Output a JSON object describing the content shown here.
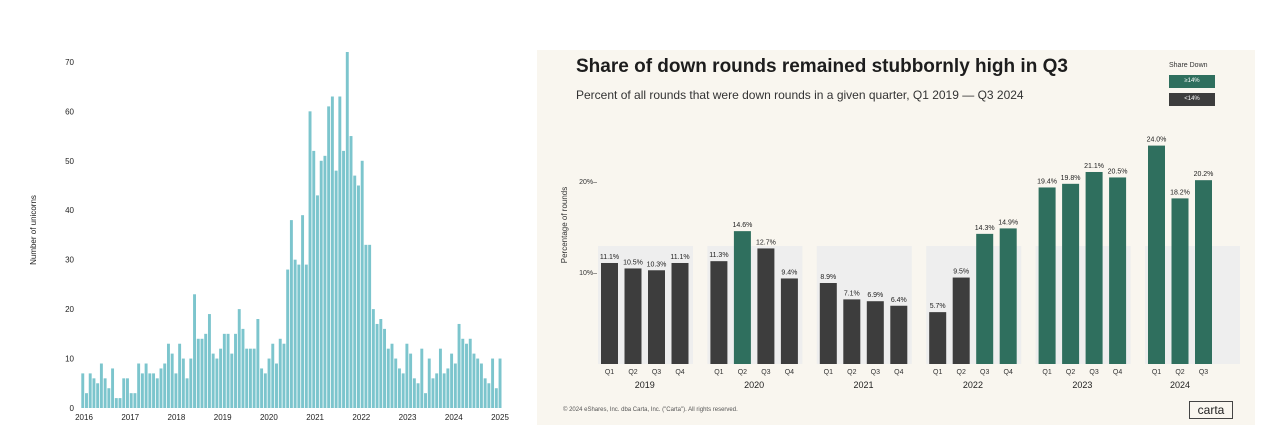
{
  "chart_data": [
    {
      "type": "bar",
      "title": "",
      "xlabel": "",
      "ylabel": "Number of unicorns",
      "ylim": [
        0,
        72
      ],
      "yticks": [
        0,
        10,
        20,
        30,
        40,
        50,
        60,
        70
      ],
      "xtick_labels": [
        "2016",
        "2017",
        "2018",
        "2019",
        "2020",
        "2021",
        "2022",
        "2023",
        "2024",
        "2025"
      ],
      "bar_color": "#7cc5cd",
      "values": [
        7,
        3,
        7,
        6,
        5,
        9,
        6,
        4,
        8,
        2,
        2,
        6,
        6,
        3,
        3,
        9,
        7,
        9,
        7,
        7,
        6,
        8,
        9,
        13,
        11,
        7,
        13,
        10,
        6,
        10,
        23,
        14,
        14,
        15,
        19,
        11,
        10,
        12,
        15,
        15,
        11,
        15,
        20,
        16,
        12,
        12,
        12,
        18,
        8,
        7,
        10,
        13,
        9,
        14,
        13,
        28,
        38,
        30,
        29,
        39,
        29,
        60,
        52,
        43,
        50,
        51,
        61,
        63,
        48,
        63,
        52,
        72,
        55,
        47,
        45,
        50,
        33,
        33,
        20,
        17,
        18,
        16,
        12,
        13,
        10,
        8,
        7,
        13,
        11,
        6,
        5,
        12,
        3,
        10,
        6,
        7,
        12,
        7,
        8,
        11,
        9,
        17,
        14,
        13,
        14,
        11,
        10,
        9,
        6,
        5,
        10,
        4,
        10
      ],
      "grid": false,
      "legend": "none"
    },
    {
      "type": "bar",
      "title": "Share of down rounds remained stubbornly high in Q3",
      "subtitle": "Percent of all rounds that were down rounds in a given quarter, Q1 2019 — Q3 2024",
      "ylabel": "Percentage of rounds",
      "ylim": [
        0,
        24.5
      ],
      "yticks": [
        {
          "value": 10,
          "label": "10%–"
        },
        {
          "value": 20,
          "label": "20%–"
        }
      ],
      "legend": {
        "title": "Share Down",
        "position": "top-right",
        "items": [
          {
            "label": "≥14%",
            "color": "#2f6f5e"
          },
          {
            "label": "<14%",
            "color": "#3d3d3d"
          }
        ]
      },
      "colors": {
        "high": "#2f6f5e",
        "low": "#3d3d3d",
        "group_bg": "#eeeeee"
      },
      "threshold": 14,
      "years": [
        {
          "year": "2019",
          "quarters": [
            "Q1",
            "Q2",
            "Q3",
            "Q4"
          ],
          "values": [
            11.1,
            10.5,
            10.3,
            11.1
          ],
          "labels": [
            "11.1%",
            "10.5%",
            "10.3%",
            "11.1%"
          ]
        },
        {
          "year": "2020",
          "quarters": [
            "Q1",
            "Q2",
            "Q3",
            "Q4"
          ],
          "values": [
            11.3,
            14.6,
            12.7,
            9.4
          ],
          "labels": [
            "11.3%",
            "14.6%",
            "12.7%",
            "9.4%"
          ]
        },
        {
          "year": "2021",
          "quarters": [
            "Q1",
            "Q2",
            "Q3",
            "Q4"
          ],
          "values": [
            8.9,
            7.1,
            6.9,
            6.4
          ],
          "labels": [
            "8.9%",
            "7.1%",
            "6.9%",
            "6.4%"
          ]
        },
        {
          "year": "2022",
          "quarters": [
            "Q1",
            "Q2",
            "Q3",
            "Q4"
          ],
          "values": [
            5.7,
            9.5,
            14.3,
            14.9
          ],
          "labels": [
            "5.7%",
            "9.5%",
            "14.3%",
            "14.9%"
          ]
        },
        {
          "year": "2023",
          "quarters": [
            "Q1",
            "Q2",
            "Q3",
            "Q4"
          ],
          "values": [
            19.4,
            19.8,
            21.1,
            20.5
          ],
          "labels": [
            "19.4%",
            "19.8%",
            "21.1%",
            "20.5%"
          ]
        },
        {
          "year": "2024",
          "quarters": [
            "Q1",
            "Q2",
            "Q3"
          ],
          "values": [
            24.0,
            18.2,
            20.2
          ],
          "labels": [
            "24.0%",
            "18.2%",
            "20.2%"
          ]
        }
      ],
      "footer": "© 2024 eShares, Inc. dba Carta, Inc. (\"Carta\"). All rights reserved.",
      "logo": "carta"
    }
  ]
}
